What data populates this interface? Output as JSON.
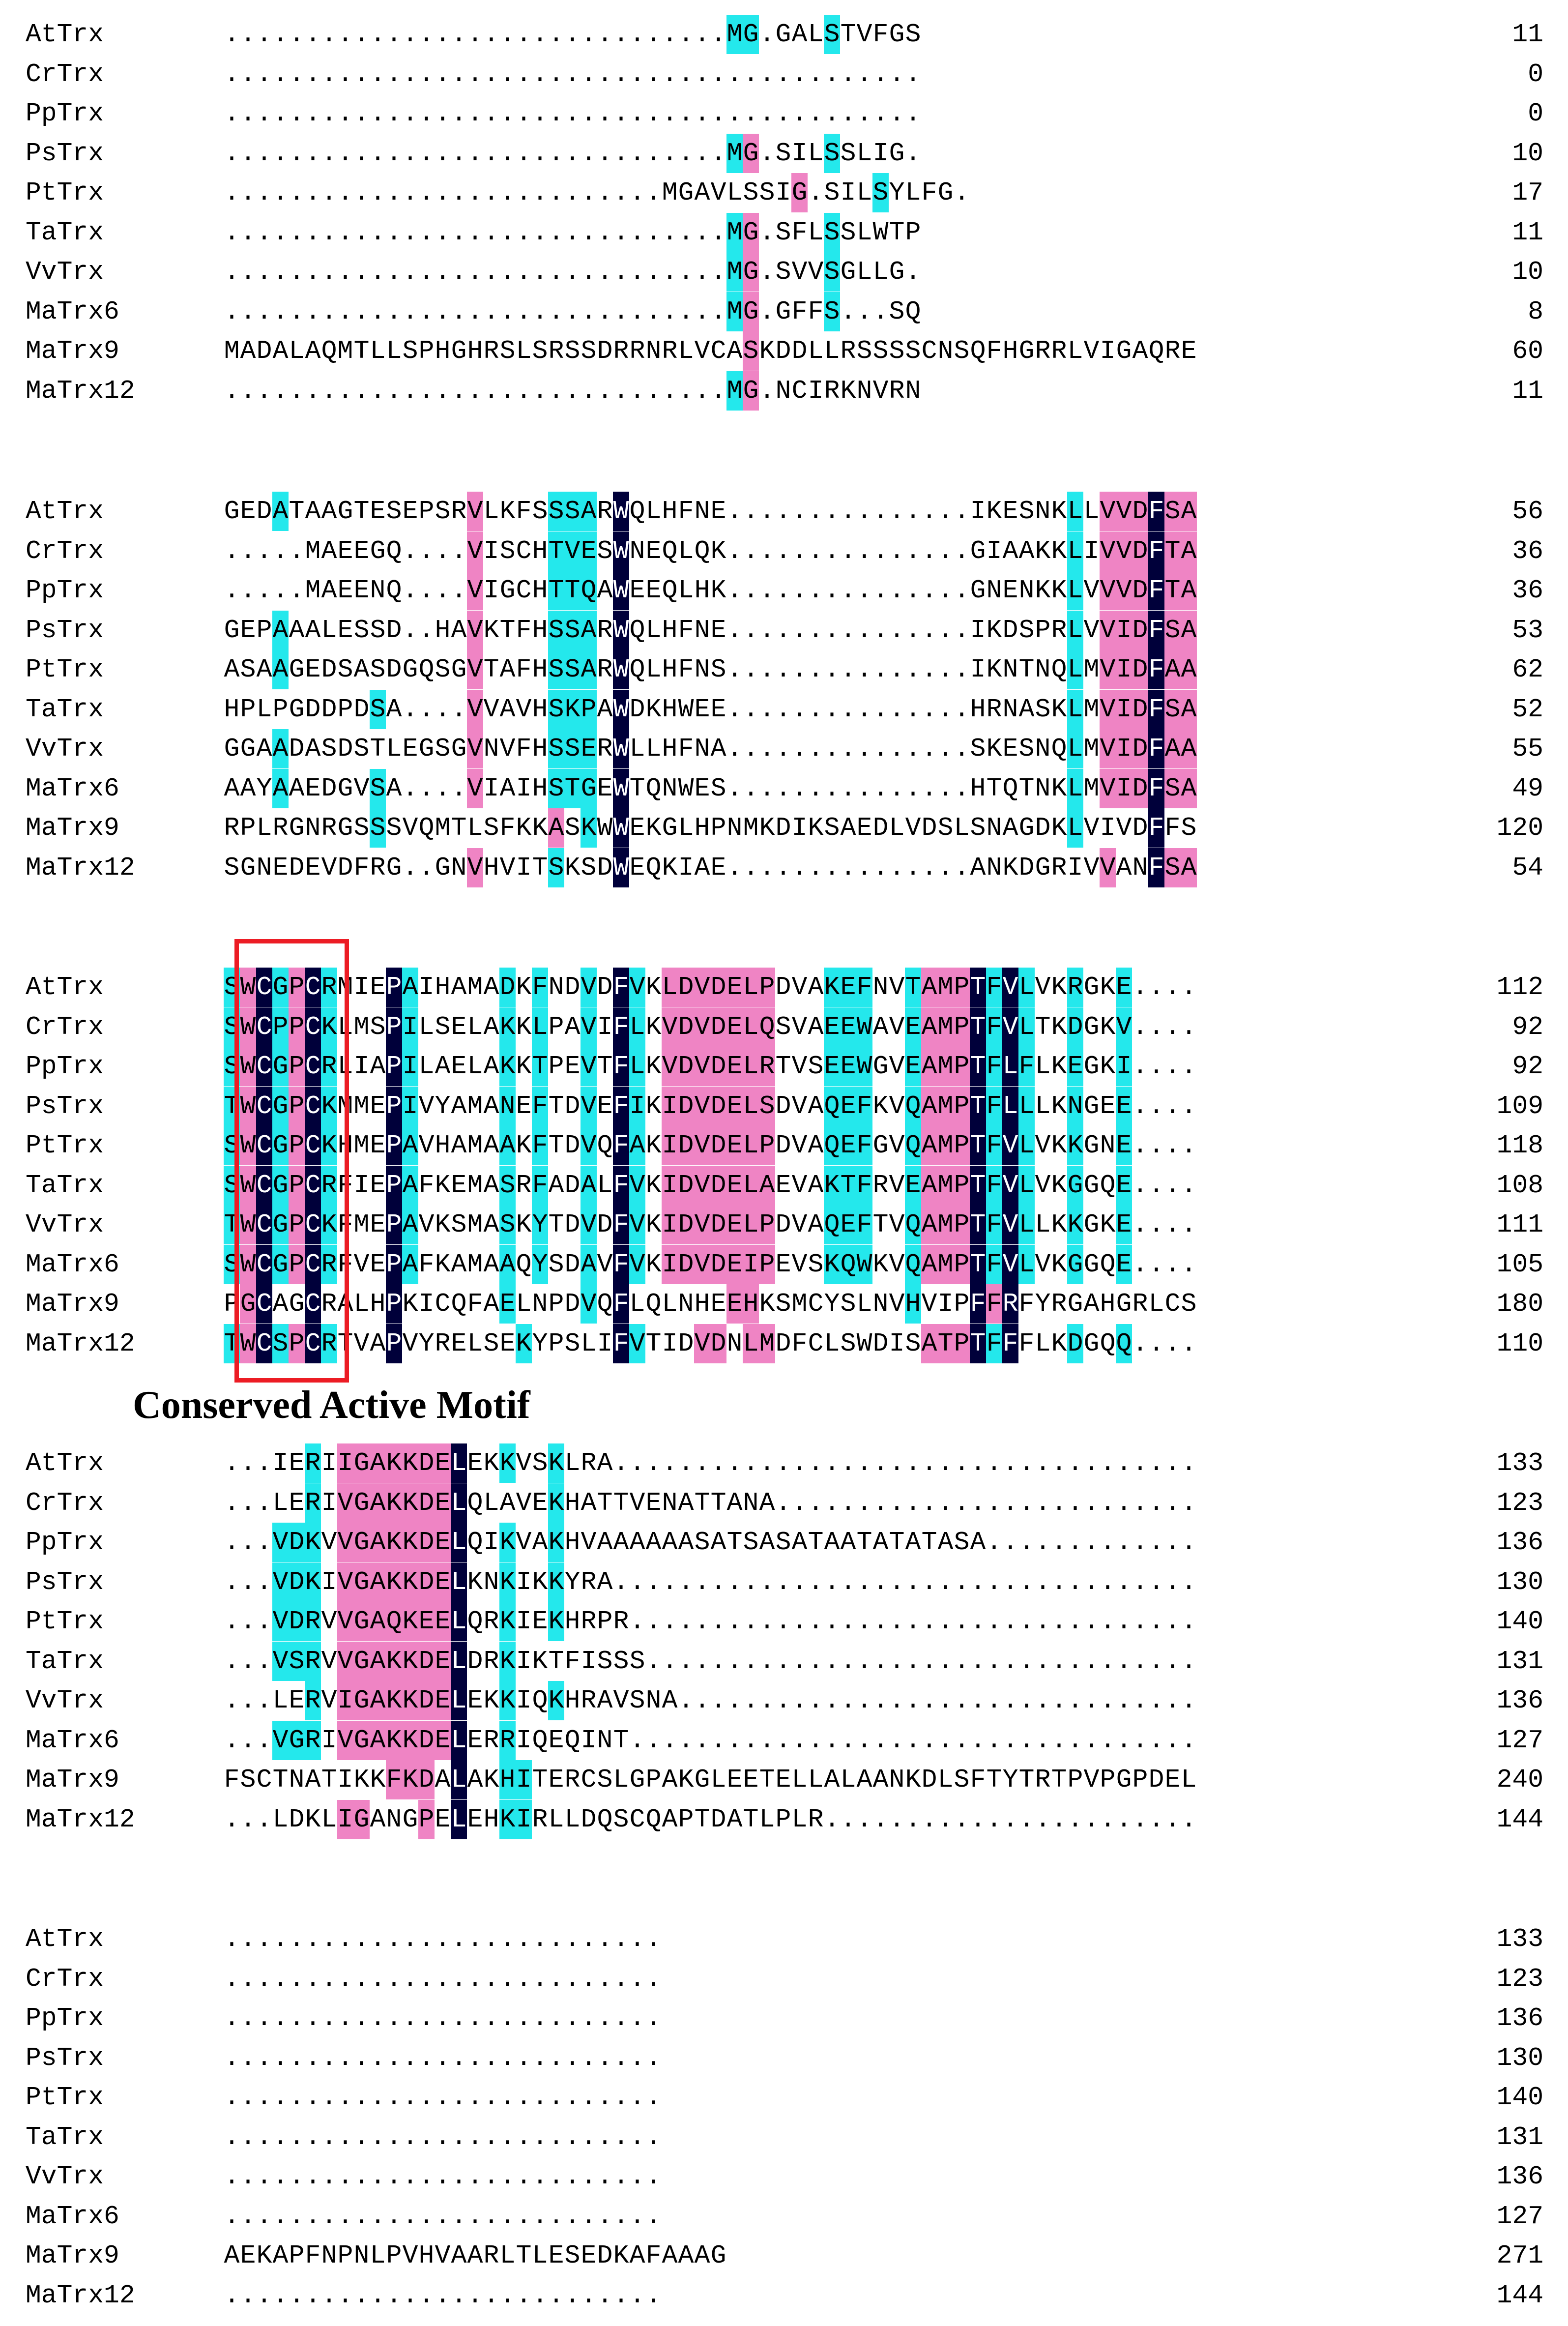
{
  "figure": {
    "annotation_label": "Conserved Active Motif",
    "colors": {
      "identical": "#00003a",
      "high_similarity": "#ef84c4",
      "partial_similarity": "#24e8ec",
      "motif_box": "#ec1c24"
    }
  },
  "blocks": [
    {
      "rows": [
        {
          "name": "AtTrx",
          "seq": "...............................MG.GALSTVFGS",
          "num": "11",
          "shade": {
            "31": "c",
            "32": "c",
            "37": "c"
          }
        },
        {
          "name": "CrTrx",
          "seq": "...........................................",
          "num": "0",
          "shade": {}
        },
        {
          "name": "PpTrx",
          "seq": "...........................................",
          "num": "0",
          "shade": {}
        },
        {
          "name": "PsTrx",
          "seq": "...............................MG.SILSSLIG.",
          "num": "10",
          "shade": {
            "31": "c",
            "32": "m",
            "37": "c"
          }
        },
        {
          "name": "PtTrx",
          "seq": "...............................MGAVLSSIG.SILSYLFG.",
          "num": "17",
          "shade": {
            "40": "m",
            "45": "c"
          }
        },
        {
          "name": "TaTrx",
          "seq": "...............................MG.SFLSSLWTP",
          "num": "11",
          "shade": {
            "31": "c",
            "32": "m",
            "37": "c"
          }
        },
        {
          "name": "VvTrx",
          "seq": "...............................MG.SVVSGLLG.",
          "num": "10",
          "shade": {
            "31": "c",
            "32": "m",
            "37": "c"
          }
        },
        {
          "name": "MaTrx6",
          "seq": "...............................MG.GFFS...SQ",
          "num": "8",
          "shade": {
            "31": "c",
            "32": "m",
            "37": "c"
          }
        },
        {
          "name": "MaTrx9",
          "seq": "MADALAQMTLLSPHGHRSLSRSSDRRNRLVCASKDDLLRSSSSCNSQFHGRRLVIGAQRE",
          "num": "60",
          "shade": {
            "50": "m"
          }
        },
        {
          "name": "MaTrx12",
          "seq": "...............................MG.NCIRKNVRN",
          "num": "11",
          "shade": {
            "31": "c",
            "32": "m"
          }
        }
      ]
    }
  ]
}
